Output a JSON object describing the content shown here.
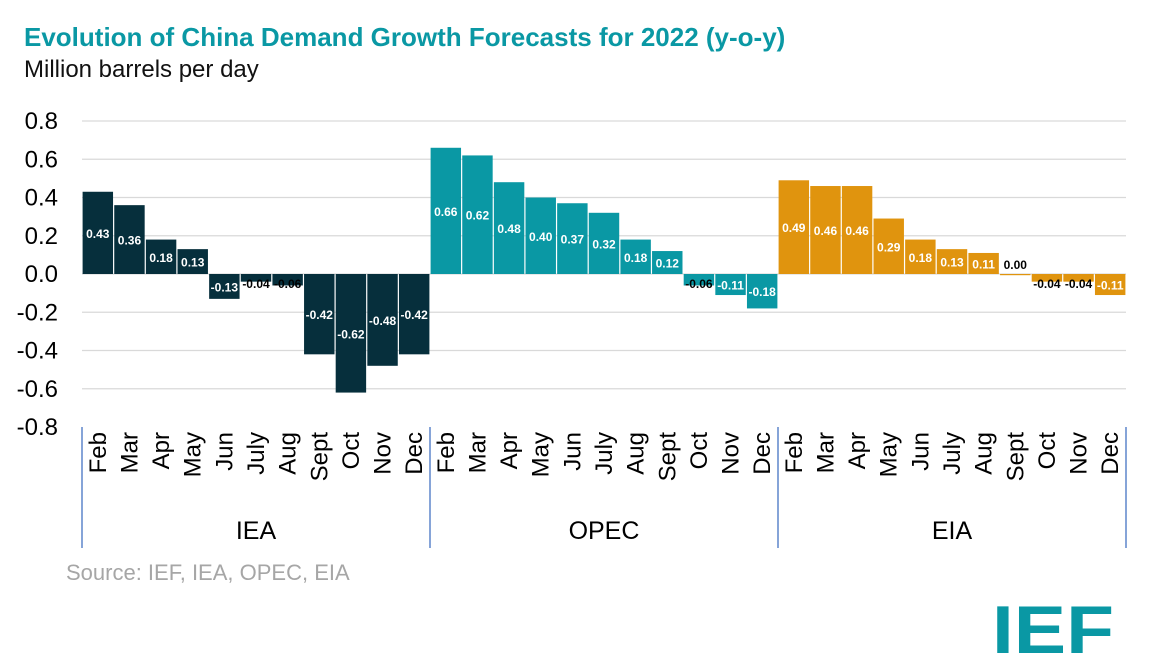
{
  "title": "Evolution of China Demand Growth Forecasts for 2022 (y-o-y)",
  "subtitle": "Million barrels per day",
  "source": "Source: IEF, IEA, OPEC, EIA",
  "logo_text": "IEF",
  "colors": {
    "title": "#0a98a4",
    "iea": "#062f3c",
    "opec": "#0a98a4",
    "eia": "#e0940e",
    "logo": "#0a98a4",
    "grid": "#d9d9d9",
    "separator": "#4472c4"
  },
  "chart_data": {
    "type": "bar",
    "title": "Evolution of China Demand Growth Forecasts for 2022 (y-o-y)",
    "ylabel": "Million barrels per day",
    "ylim": [
      -0.8,
      0.8
    ],
    "yticks": [
      "0.8",
      "0.6",
      "0.4",
      "0.2",
      "0.0",
      "-0.2",
      "-0.4",
      "-0.6",
      "-0.8"
    ],
    "ytick_values": [
      0.8,
      0.6,
      0.4,
      0.2,
      0.0,
      -0.2,
      -0.4,
      -0.6,
      -0.8
    ],
    "grid": true,
    "groups": [
      {
        "name": "IEA",
        "color": "#062f3c",
        "categories": [
          "Feb",
          "Mar",
          "Apr",
          "May",
          "Jun",
          "July",
          "Aug",
          "Sept",
          "Oct",
          "Nov",
          "Dec"
        ],
        "values": [
          0.43,
          0.36,
          0.18,
          0.13,
          -0.13,
          -0.04,
          -0.06,
          -0.42,
          -0.62,
          -0.48,
          -0.42
        ],
        "labels": [
          "0.43",
          "0.36",
          "0.18",
          "0.13",
          "-0.13",
          "-0.04",
          "-0.06",
          "-0.42",
          "-0.62",
          "-0.48",
          "-0.42"
        ]
      },
      {
        "name": "OPEC",
        "color": "#0a98a4",
        "categories": [
          "Feb",
          "Mar",
          "Apr",
          "May",
          "Jun",
          "July",
          "Aug",
          "Sept",
          "Oct",
          "Nov",
          "Dec"
        ],
        "values": [
          0.66,
          0.62,
          0.48,
          0.4,
          0.37,
          0.32,
          0.18,
          0.12,
          -0.06,
          -0.11,
          -0.18
        ],
        "labels": [
          "0.66",
          "0.62",
          "0.48",
          "0.40",
          "0.37",
          "0.32",
          "0.18",
          "0.12",
          "-0.06",
          "-0.11",
          "-0.18"
        ]
      },
      {
        "name": "EIA",
        "color": "#e0940e",
        "categories": [
          "Feb",
          "Mar",
          "Apr",
          "May",
          "Jun",
          "July",
          "Aug",
          "Sept",
          "Oct",
          "Nov",
          "Dec"
        ],
        "values": [
          0.49,
          0.46,
          0.46,
          0.29,
          0.18,
          0.13,
          0.11,
          0.0,
          -0.04,
          -0.04,
          -0.11
        ],
        "labels": [
          "0.49",
          "0.46",
          "0.46",
          "0.29",
          "0.18",
          "0.13",
          "0.11",
          "0.00",
          "-0.04",
          "-0.04",
          "-0.11"
        ]
      }
    ]
  }
}
